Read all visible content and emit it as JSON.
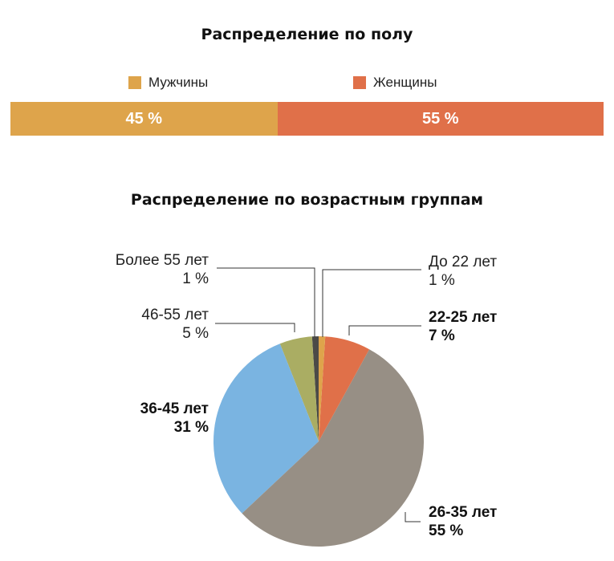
{
  "gender": {
    "title": "Распределение по полу",
    "items": [
      {
        "label": "Мужчины",
        "value": 45,
        "display": "45 %",
        "color": "#dea44b"
      },
      {
        "label": "Женщины",
        "value": 55,
        "display": "55 %",
        "color": "#e07049"
      }
    ]
  },
  "chart_data": {
    "type": "pie",
    "title": "Распределение по возрастным группам",
    "slices": [
      {
        "label": "До 22 лет",
        "value": 1,
        "display": "1 %",
        "color": "#dea44b"
      },
      {
        "label": "22-25 лет",
        "value": 7,
        "display": "7 %",
        "color": "#e07049"
      },
      {
        "label": "26-35 лет",
        "value": 55,
        "display": "55 %",
        "color": "#978f85"
      },
      {
        "label": "36-45 лет",
        "value": 31,
        "display": "31 %",
        "color": "#7ab4e1"
      },
      {
        "label": "46-55 лет",
        "value": 5,
        "display": "5 %",
        "color": "#aaad63"
      },
      {
        "label": "Более 55 лет",
        "value": 1,
        "display": "1 %",
        "color": "#4b4a47"
      }
    ]
  }
}
